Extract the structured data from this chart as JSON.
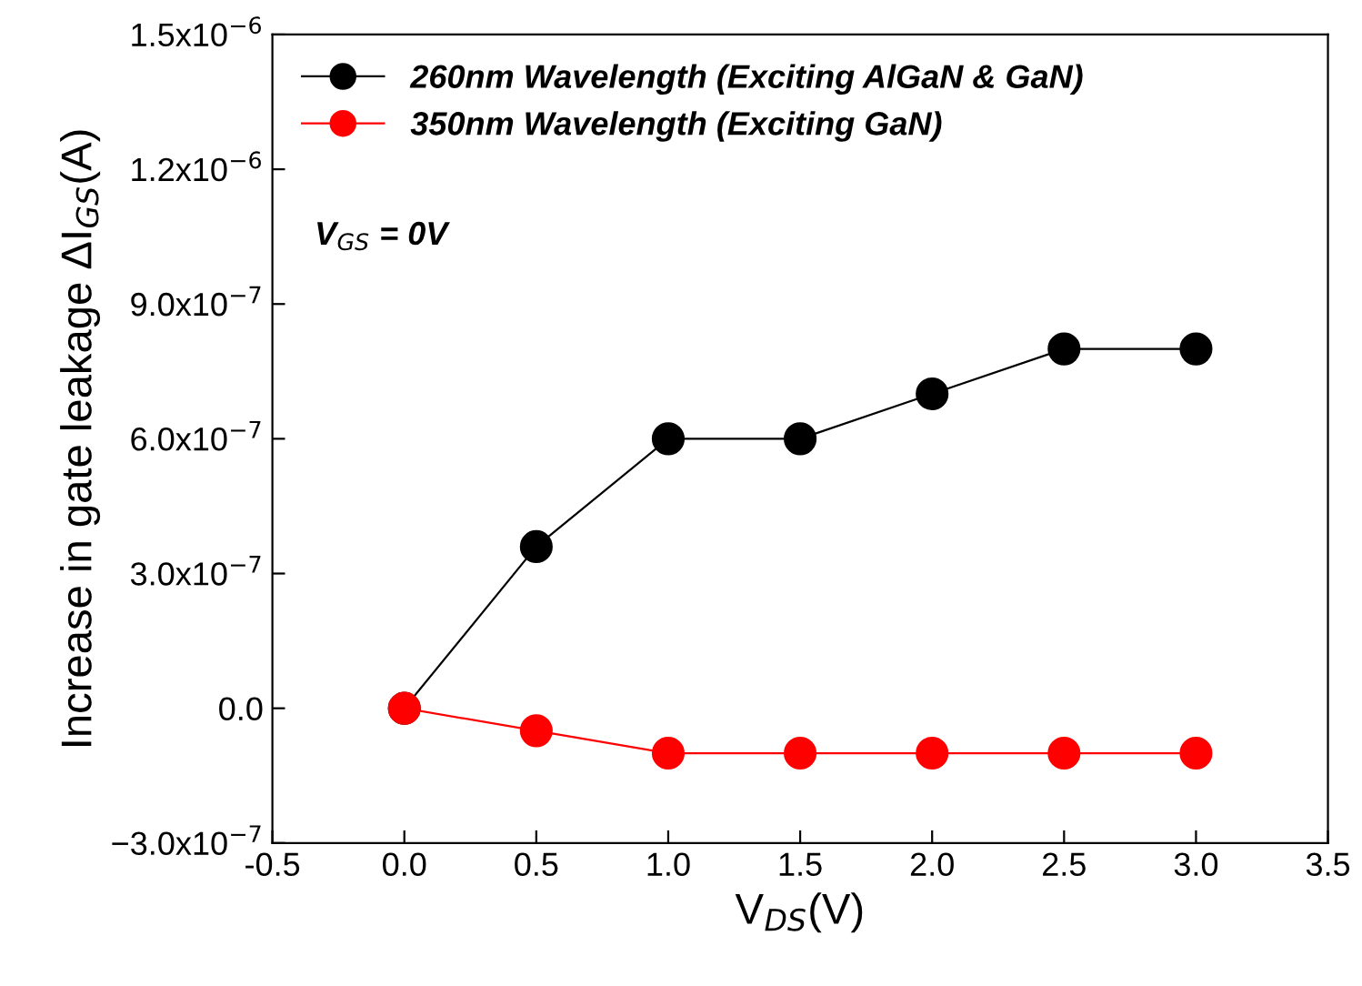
{
  "chart_data": {
    "type": "line",
    "xlabel": "V$_{DS}$(V)",
    "ylabel": "Increase in gate leakage ΔI$_{GS}$(A)",
    "x": [
      0.0,
      0.5,
      1.0,
      1.5,
      2.0,
      2.5,
      3.0
    ],
    "series": [
      {
        "name": "260nm Wavelength (Exciting AlGaN & GaN)",
        "color": "#000000",
        "values": [
          0.0,
          3.6e-07,
          6e-07,
          6e-07,
          7e-07,
          8e-07,
          8e-07
        ]
      },
      {
        "name": "350nm Wavelength (Exciting GaN)",
        "color": "#ff0000",
        "values": [
          0.0,
          -5e-08,
          -1e-07,
          -1e-07,
          -1e-07,
          -1e-07,
          -1e-07
        ]
      }
    ],
    "annotations": [
      "V$_{GS}$ = 0V"
    ],
    "xlim": [
      -0.5,
      3.5
    ],
    "xticks": [
      -0.5,
      {
        "value": 0,
        "label": "0.0"
      },
      0.5,
      {
        "value": 1,
        "label": "1.0"
      },
      1.5,
      {
        "value": 2,
        "label": "2.0"
      },
      2.5,
      {
        "value": 3,
        "label": "3.0"
      },
      3.5
    ],
    "ylim": [
      -3e-07,
      1.5e-06
    ],
    "yticks": [
      {
        "value": -3e-07,
        "label": "−3.0x10$^{−7}$"
      },
      {
        "value": 0.0,
        "label": "0.0"
      },
      {
        "value": 3e-07,
        "label": "3.0x10$^{−7}$"
      },
      {
        "value": 6e-07,
        "label": "6.0x10$^{−7}$"
      },
      {
        "value": 9e-07,
        "label": "9.0x10$^{−7}$"
      },
      {
        "value": 1.2e-06,
        "label": "1.2x10$^{−6}$"
      },
      {
        "value": 1.5e-06,
        "label": "1.5x10$^{−6}$"
      }
    ],
    "marker": "circle",
    "line_style": "solid",
    "legend": "top left",
    "grid": false
  }
}
